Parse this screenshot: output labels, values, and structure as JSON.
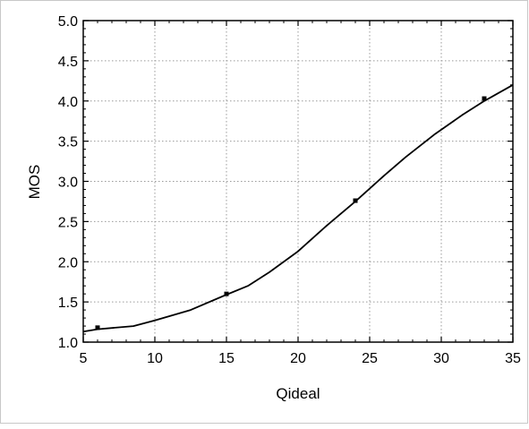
{
  "chart_data": {
    "type": "line",
    "title": "",
    "xlabel": "Qideal",
    "ylabel": "MOS",
    "xlim": [
      5,
      35
    ],
    "ylim": [
      1.0,
      5.0
    ],
    "x_ticks": [
      "5",
      "10",
      "15",
      "20",
      "25",
      "30",
      "35"
    ],
    "y_ticks": [
      "1.0",
      "1.5",
      "2.0",
      "2.5",
      "3.0",
      "3.5",
      "4.0",
      "4.5",
      "5.0"
    ],
    "grid": true,
    "series": [
      {
        "kind": "fitted-curve",
        "color": "#000000",
        "x": [
          5.0,
          6.0,
          8.5,
          10.0,
          12.5,
          15.0,
          16.5,
          18.0,
          20.0,
          22.0,
          24.0,
          26.0,
          27.5,
          29.5,
          31.5,
          33.0,
          35.0
        ],
        "y": [
          1.13,
          1.16,
          1.2,
          1.27,
          1.4,
          1.59,
          1.7,
          1.87,
          2.13,
          2.45,
          2.75,
          3.07,
          3.3,
          3.58,
          3.83,
          4.0,
          4.2
        ]
      },
      {
        "kind": "markers",
        "color": "#000000",
        "x": [
          6,
          15,
          24,
          33
        ],
        "y": [
          1.18,
          1.6,
          2.76,
          4.03
        ]
      }
    ]
  }
}
